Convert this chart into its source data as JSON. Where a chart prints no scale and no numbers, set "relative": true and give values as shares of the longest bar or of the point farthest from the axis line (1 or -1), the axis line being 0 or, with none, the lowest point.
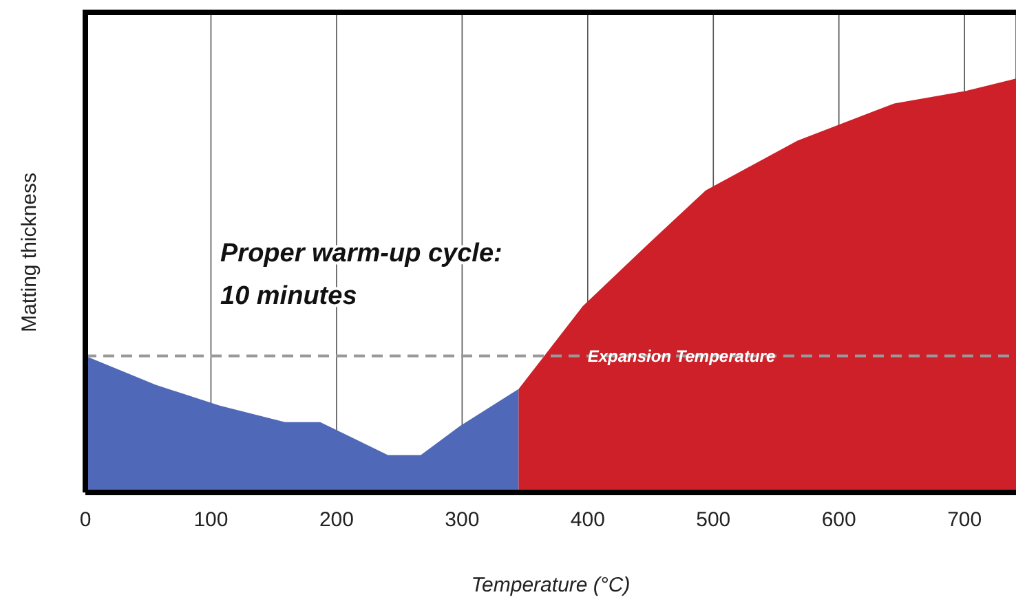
{
  "chart_data": {
    "type": "area",
    "relative": true,
    "xlabel": "Temperature (°C)",
    "ylabel": "Matting thickness",
    "xlim": [
      0,
      741
    ],
    "xticks": [
      0,
      100,
      200,
      300,
      400,
      500,
      600,
      700
    ],
    "grid": "x",
    "legend": false,
    "series": [
      {
        "color": "#5068b8",
        "x": [
          0,
          56,
          107,
          159,
          187,
          241,
          267,
          298,
          345
        ],
        "values": [
          0.33,
          0.26,
          0.21,
          0.17,
          0.17,
          0.09,
          0.09,
          0.16,
          0.25
        ]
      },
      {
        "color": "#cd2028",
        "x": [
          345,
          396,
          448,
          494,
          567,
          644,
          701,
          741
        ],
        "values": [
          0.25,
          0.45,
          0.6,
          0.73,
          0.85,
          0.94,
          0.97,
          1.0
        ]
      }
    ],
    "ref_lines": [
      {
        "axis": "y",
        "value": 0.33,
        "label": "Expansion Temperature",
        "color": "#999999",
        "line_style": "dashed"
      }
    ],
    "annotations": [
      "Proper warm-up cycle:\n10 minutes"
    ]
  }
}
